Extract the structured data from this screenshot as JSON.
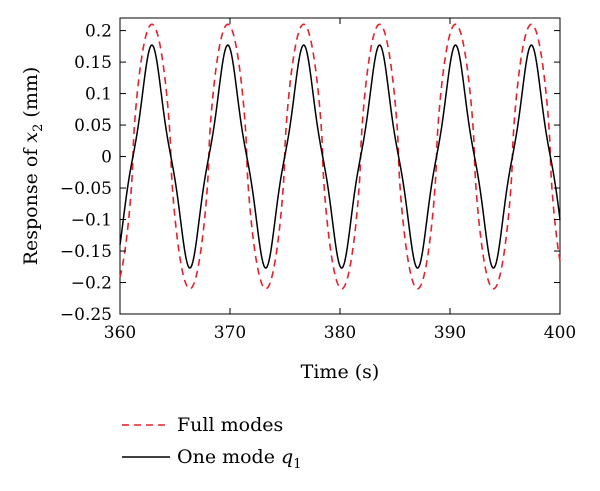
{
  "chart_data": {
    "type": "line",
    "title": "",
    "xlabel": "Time (s)",
    "ylabel_parts": {
      "prefix": "Response of ",
      "var": "x",
      "sub": "2",
      "suffix": " (mm)"
    },
    "xlim": [
      360,
      400
    ],
    "ylim": [
      -0.25,
      0.22
    ],
    "xticks": [
      360,
      370,
      380,
      390,
      400
    ],
    "xtick_labels": [
      "360",
      "370",
      "380",
      "390",
      "400"
    ],
    "yticks": [
      -0.25,
      -0.2,
      -0.15,
      -0.1,
      -0.05,
      0,
      0.05,
      0.1,
      0.15,
      0.2
    ],
    "ytick_labels": [
      "−0.25",
      "−0.2",
      "−0.15",
      "−0.1",
      "−0.05",
      "0",
      "0.05",
      "0.1",
      "0.15",
      "0.2"
    ],
    "grid": false,
    "legend_position": "below",
    "series": [
      {
        "name": "Full modes",
        "color": "#e8202a",
        "dash": "dashed",
        "period": 6.9,
        "peak_times": [
          362.9,
          369.8,
          376.7,
          383.6,
          390.5,
          397.4
        ],
        "trough_times": [
          366.3,
          373.2,
          380.1,
          387.0,
          393.9
        ],
        "max": 0.21,
        "min": -0.21
      },
      {
        "name": "One mode",
        "name_var": "q",
        "name_sub": "1",
        "color": "#000000",
        "dash": "solid",
        "period": 6.9,
        "peak_times": [
          362.9,
          369.8,
          376.7,
          383.6,
          390.5,
          397.4
        ],
        "trough_times": [
          366.3,
          373.2,
          380.1,
          387.0,
          393.9
        ],
        "max": 0.177,
        "min": -0.177
      }
    ]
  }
}
